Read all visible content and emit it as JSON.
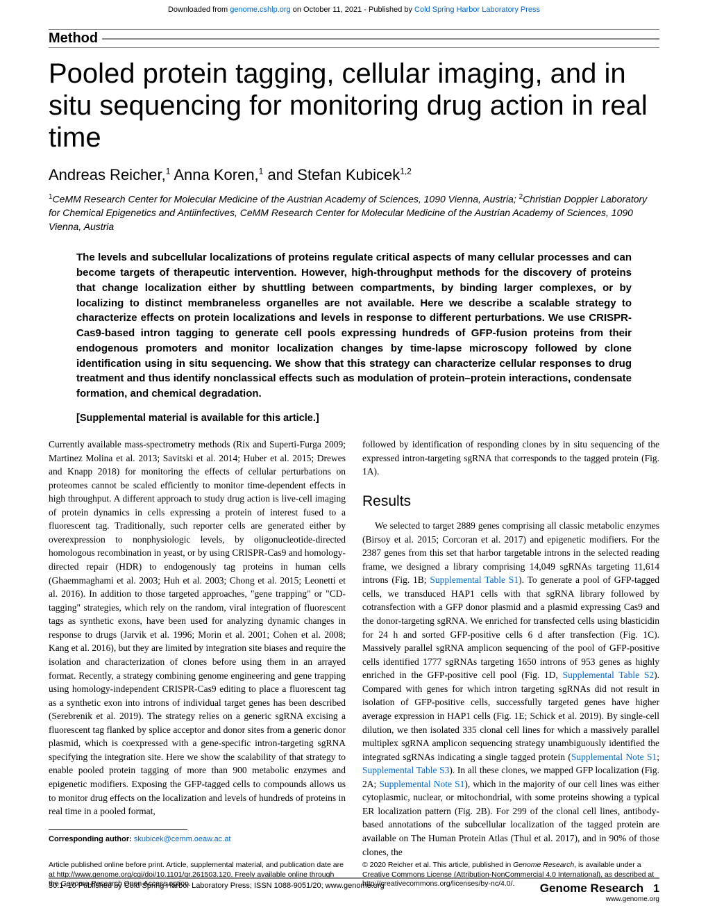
{
  "banner": {
    "prefix": "Downloaded from ",
    "url": "genome.cshlp.org",
    "middle": " on October 11, 2021 - Published by ",
    "publisher": "Cold Spring Harbor Laboratory Press"
  },
  "section_label": "Method",
  "title": "Pooled protein tagging, cellular imaging, and in situ sequencing for monitoring drug action in real time",
  "authors_html": "Andreas Reicher,<sup>1</sup> Anna Koren,<sup>1</sup> and Stefan Kubicek<sup>1,2</sup>",
  "affiliations_html": "<sup>1</sup>CeMM Research Center for Molecular Medicine of the Austrian Academy of Sciences, 1090 Vienna, Austria; <sup>2</sup>Christian Doppler Laboratory for Chemical Epigenetics and Antiinfectives, CeMM Research Center for Molecular Medicine of the Austrian Academy of Sciences, 1090 Vienna, Austria",
  "abstract": "The levels and subcellular localizations of proteins regulate critical aspects of many cellular processes and can become targets of therapeutic intervention. However, high-throughput methods for the discovery of proteins that change localization either by shuttling between compartments, by binding larger complexes, or by localizing to distinct membraneless organelles are not available. Here we describe a scalable strategy to characterize effects on protein localizations and levels in response to different perturbations. We use CRISPR-Cas9-based intron tagging to generate cell pools expressing hundreds of GFP-fusion proteins from their endogenous promoters and monitor localization changes by time-lapse microscopy followed by clone identification using in situ sequencing. We show that this strategy can characterize cellular responses to drug treatment and thus identify nonclassical effects such as modulation of protein–protein interactions, condensate formation, and chemical degradation.",
  "supplemental": "[Supplemental material is available for this article.]",
  "left_col": "Currently available mass-spectrometry methods (Rix and Superti-Furga 2009; Martinez Molina et al. 2013; Savitski et al. 2014; Huber et al. 2015; Drewes and Knapp 2018) for monitoring the effects of cellular perturbations on proteomes cannot be scaled efficiently to monitor time-dependent effects in high throughput. A different approach to study drug action is live-cell imaging of protein dynamics in cells expressing a protein of interest fused to a fluorescent tag. Traditionally, such reporter cells are generated either by overexpression to nonphysiologic levels, by oligonucleotide-directed homologous recombination in yeast, or by using CRISPR-Cas9 and homology-directed repair (HDR) to endogenously tag proteins in human cells (Ghaemmaghami et al. 2003; Huh et al. 2003; Chong et al. 2015; Leonetti et al. 2016). In addition to those targeted approaches, \"gene trapping\" or \"CD-tagging\" strategies, which rely on the random, viral integration of fluorescent tags as synthetic exons, have been used for analyzing dynamic changes in response to drugs (Jarvik et al. 1996; Morin et al. 2001; Cohen et al. 2008; Kang et al. 2016), but they are limited by integration site biases and require the isolation and characterization of clones before using them in an arrayed format. Recently, a strategy combining genome engineering and gene trapping using homology-independent CRISPR-Cas9 editing to place a fluorescent tag as a synthetic exon into introns of individual target genes has been described (Serebrenik et al. 2019). The strategy relies on a generic sgRNA excising a fluorescent tag flanked by splice acceptor and donor sites from a generic donor plasmid, which is coexpressed with a gene-specific intron-targeting sgRNA specifying the integration site. Here we show the scalability of that strategy to enable pooled protein tagging of more than 900 metabolic enzymes and epigenetic modifiers. Exposing the GFP-tagged cells to compounds allows us to monitor drug effects on the localization and levels of hundreds of proteins in real time in a pooled format,",
  "right_col_intro": "followed by identification of responding clones by in situ sequencing of the expressed intron-targeting sgRNA that corresponds to the tagged protein (Fig. 1A).",
  "results_heading": "Results",
  "right_col_results": "We selected to target 2889 genes comprising all classic metabolic enzymes (Birsoy et al. 2015; Corcoran et al. 2017) and epigenetic modifiers. For the 2387 genes from this set that harbor targetable introns in the selected reading frame, we designed a library comprising 14,049 sgRNAs targeting 11,614 introns (Fig. 1B; <span class=\"link\">Supplemental Table S1</span>). To generate a pool of GFP-tagged cells, we transduced HAP1 cells with that sgRNA library followed by cotransfection with a GFP donor plasmid and a plasmid expressing Cas9 and the donor-targeting sgRNA. We enriched for transfected cells using blasticidin for 24 h and sorted GFP-positive cells 6 d after transfection (Fig. 1C). Massively parallel sgRNA amplicon sequencing of the pool of GFP-positive cells identified 1777 sgRNAs targeting 1650 introns of 953 genes as highly enriched in the GFP-positive cell pool (Fig. 1D, <span class=\"link\">Supplemental Table S2</span>). Compared with genes for which intron targeting sgRNAs did not result in isolation of GFP-positive cells, successfully targeted genes have higher average expression in HAP1 cells (Fig. 1E; Schick et al. 2019). By single-cell dilution, we then isolated 335 clonal cell lines for which a massively parallel multiplex sgRNA amplicon sequencing strategy unambiguously identified the integrated sgRNAs indicating a single tagged protein (<span class=\"link\">Supplemental Note S1</span>; <span class=\"link\">Supplemental Table S3</span>). In all these clones, we mapped GFP localization (Fig. 2A; <span class=\"link\">Supplemental Note S1</span>), which in the majority of our cell lines was either cytoplasmic, nuclear, or mitochondrial, with some proteins showing a typical ER localization pattern (Fig. 2B). For 299 of the clonal cell lines, antibody-based annotations of the subcellular localization of the tagged protein are available on The Human Protein Atlas (Thul et al. 2017), and in 90% of those clones, the",
  "corresponding": {
    "label": "Corresponding author: ",
    "email": "skubicek@cemm.oeaw.ac.at"
  },
  "footer_left": "Article published online before print. Article, supplemental material, and publication date are at http://www.genome.org/cgi/doi/10.1101/gr.261503.120. Freely available online through the <em>Genome Research</em> Open Access option.",
  "footer_right": "© 2020 Reicher et al.   This article, published in <em>Genome Research</em>, is available under a Creative Commons License (Attribution-NonCommercial 4.0 International), as described at http://creativecommons.org/licenses/by-nc/4.0/.",
  "page_footer": {
    "left": "30:1–10 Published by Cold Spring Harbor Laboratory Press; ISSN 1088-9051/20; www.genome.org",
    "journal": "Genome Research",
    "url": "www.genome.org",
    "page": "1"
  },
  "colors": {
    "link": "#0066cc",
    "rule": "#888888",
    "text": "#000000",
    "bg": "#ffffff"
  },
  "fonts": {
    "body": "Georgia, Times New Roman, serif",
    "headings": "Arial Narrow, Arial, sans-serif",
    "footer": "Arial, sans-serif"
  }
}
